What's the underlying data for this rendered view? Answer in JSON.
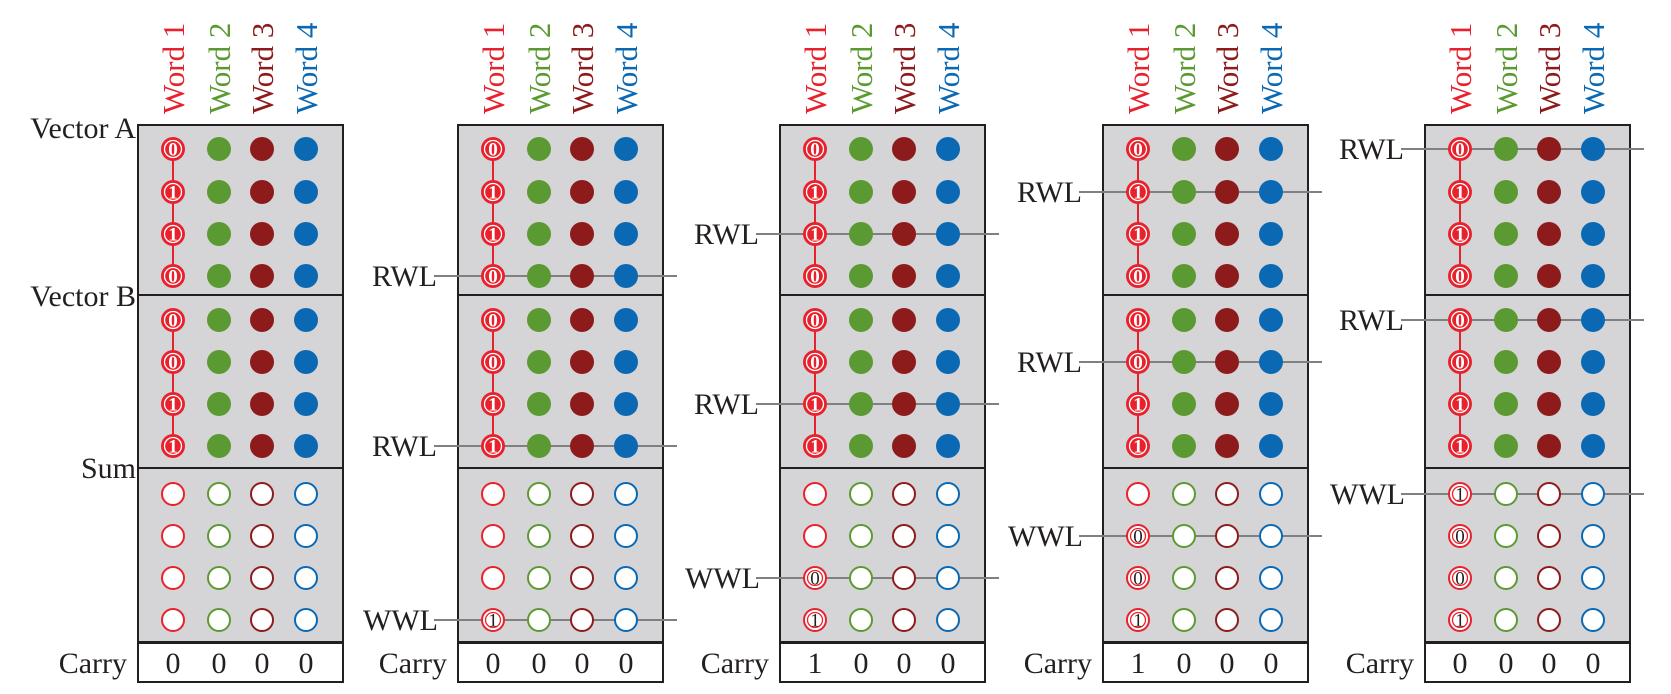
{
  "colors": {
    "word1": "#e8222d",
    "word2": "#5b9a32",
    "word3": "#8e1b1b",
    "word4": "#0b69b4",
    "panel": "#d5d5d7",
    "line": "#808080",
    "border": "#231f20"
  },
  "word_headers": [
    "Word 1",
    "Word 2",
    "Word 3",
    "Word 4"
  ],
  "row_labels": {
    "vector_a": "Vector A",
    "vector_b": "Vector B",
    "sum": "Sum",
    "carry": "Carry"
  },
  "wordline_labels": {
    "read": "RWL",
    "write": "WWL"
  },
  "stages": [
    {
      "vector_a": [
        "0",
        "1",
        "1",
        "0"
      ],
      "vector_b": [
        "0",
        "0",
        "1",
        "1"
      ],
      "sum": [
        "",
        "",
        "",
        ""
      ],
      "carry": [
        "0",
        "0",
        "0",
        "0"
      ],
      "rwl_rows": [],
      "wwl_row": null
    },
    {
      "vector_a": [
        "0",
        "1",
        "1",
        "0"
      ],
      "vector_b": [
        "0",
        "0",
        "1",
        "1"
      ],
      "sum": [
        "",
        "",
        "",
        "1"
      ],
      "carry": [
        "0",
        "0",
        "0",
        "0"
      ],
      "rwl_rows": [
        3,
        7
      ],
      "wwl_row": 11
    },
    {
      "vector_a": [
        "0",
        "1",
        "1",
        "0"
      ],
      "vector_b": [
        "0",
        "0",
        "1",
        "1"
      ],
      "sum": [
        "",
        "",
        "0",
        "1"
      ],
      "carry": [
        "1",
        "0",
        "0",
        "0"
      ],
      "rwl_rows": [
        2,
        6
      ],
      "wwl_row": 10
    },
    {
      "vector_a": [
        "0",
        "1",
        "1",
        "0"
      ],
      "vector_b": [
        "0",
        "0",
        "1",
        "1"
      ],
      "sum": [
        "",
        "0",
        "0",
        "1"
      ],
      "carry": [
        "1",
        "0",
        "0",
        "0"
      ],
      "rwl_rows": [
        1,
        5
      ],
      "wwl_row": 9
    },
    {
      "vector_a": [
        "0",
        "1",
        "1",
        "0"
      ],
      "vector_b": [
        "0",
        "0",
        "1",
        "1"
      ],
      "sum": [
        "1",
        "0",
        "0",
        "1"
      ],
      "carry": [
        "0",
        "0",
        "0",
        "0"
      ],
      "rwl_rows": [
        0,
        4
      ],
      "wwl_row": 8
    }
  ]
}
